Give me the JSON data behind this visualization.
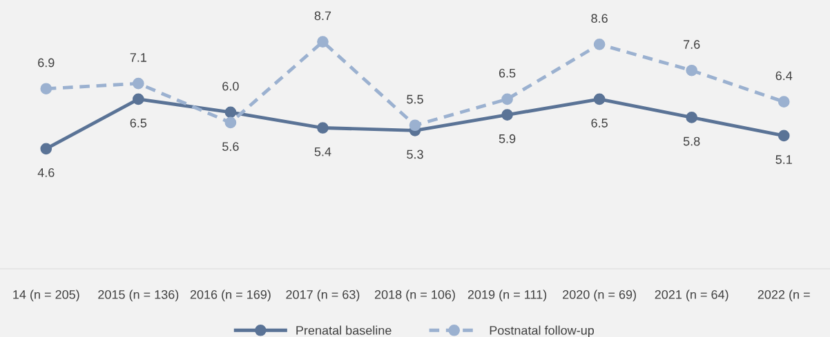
{
  "chart_data": {
    "type": "line",
    "categories": [
      "14 (n = 205)",
      "2015 (n = 136)",
      "2016 (n = 169)",
      "2017 (n = 63)",
      "2018 (n = 106)",
      "2019 (n = 111)",
      "2020 (n = 69)",
      "2021 (n = 64)",
      "2022 (n ="
    ],
    "series": [
      {
        "name": "Prenatal baseline",
        "color": "#5a7396",
        "line_style": "solid",
        "values": [
          4.6,
          6.5,
          6.0,
          5.4,
          5.3,
          5.9,
          6.5,
          5.8,
          5.1
        ],
        "value_labels": [
          "4.6",
          "6.5",
          "6.0",
          "5.4",
          "5.3",
          "5.9",
          "6.5",
          "5.8",
          "5.1"
        ]
      },
      {
        "name": "Postnatal follow-up",
        "color": "#9bb1d0",
        "line_style": "dashed",
        "values": [
          6.9,
          7.1,
          5.6,
          8.7,
          5.5,
          6.5,
          8.6,
          7.6,
          6.4
        ],
        "value_labels": [
          "6.9",
          "7.1",
          "5.6",
          "8.7",
          "5.5",
          "6.5",
          "8.6",
          "7.6",
          "6.4"
        ]
      }
    ],
    "ylim": [
      0,
      10.3
    ],
    "marker": "circle",
    "grid": false,
    "legend": "bottom"
  }
}
